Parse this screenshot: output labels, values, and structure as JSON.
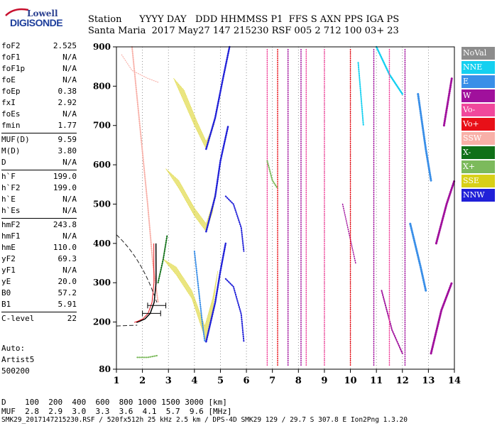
{
  "logo": {
    "top": "Lowell",
    "bottom": "DIGISONDE"
  },
  "header": {
    "line1": "Station      YYYY DAY   DDD HHMMSS P1  FFS S AXN PPS IGA PS",
    "line2": "Santa Maria  2017 May27 147 215230 RSF 005 2 712 100 03+ 23"
  },
  "params": [
    {
      "name": "foF2",
      "value": "2.525"
    },
    {
      "name": "foF1",
      "value": "N/A"
    },
    {
      "name": "foF1p",
      "value": "N/A"
    },
    {
      "name": "foE",
      "value": "N/A"
    },
    {
      "name": "foEp",
      "value": "0.38"
    },
    {
      "name": "fxI",
      "value": "2.92"
    },
    {
      "name": "foEs",
      "value": "N/A"
    },
    {
      "name": "fmin",
      "value": "1.77"
    },
    {
      "name": "MUF(D)",
      "value": "9.59"
    },
    {
      "name": "M(D)",
      "value": "3.80"
    },
    {
      "name": "D",
      "value": "N/A"
    },
    {
      "name": "h`F",
      "value": "199.0"
    },
    {
      "name": "h`F2",
      "value": "199.0"
    },
    {
      "name": "h`E",
      "value": "N/A"
    },
    {
      "name": "h`Es",
      "value": "N/A"
    },
    {
      "name": "hmF2",
      "value": "243.8"
    },
    {
      "name": "hmF1",
      "value": "N/A"
    },
    {
      "name": "hmE",
      "value": "110.0"
    },
    {
      "name": "yF2",
      "value": "69.3"
    },
    {
      "name": "yF1",
      "value": "N/A"
    },
    {
      "name": "yE",
      "value": "20.0"
    },
    {
      "name": "B0",
      "value": "57.2"
    },
    {
      "name": "B1",
      "value": "5.91"
    },
    {
      "name": "C-level",
      "value": "22"
    }
  ],
  "auto": {
    "line1": "Auto:",
    "line2": "Artist5",
    "line3": "500200"
  },
  "legend": [
    {
      "label": "NoVal",
      "color": "#8c8c8c"
    },
    {
      "label": "NNE",
      "color": "#15d0f0"
    },
    {
      "label": "E",
      "color": "#3a8fe8"
    },
    {
      "label": "W",
      "color": "#a0109c"
    },
    {
      "label": "Vo-",
      "color": "#f0489c"
    },
    {
      "label": "Vo+",
      "color": "#e81018"
    },
    {
      "label": "SSW",
      "color": "#f8b0a8"
    },
    {
      "label": "X-",
      "color": "#107018"
    },
    {
      "label": "X+",
      "color": "#7cba5c"
    },
    {
      "label": "SSE",
      "color": "#d8d018"
    },
    {
      "label": "NNW",
      "color": "#2020d8"
    }
  ],
  "footer": {
    "d_row": "D    100  200  400  600  800 1000 1500 3000 [km]",
    "muf_row": "MUF  2.8  2.9  3.0  3.3  3.6  4.1  5.7  9.6 [MHz]",
    "info": "SMK29_2017147215230.RSF / 520fx512h 25 kHz 2.5 km / DPS-4D SMK29 129 / 29.7 S 307.8 E Ion2Png 1.3.20"
  },
  "chart_data": {
    "type": "scatter",
    "xlim": [
      1,
      14
    ],
    "ylim": [
      80,
      900
    ],
    "x_ticks": [
      1,
      2,
      3,
      4,
      5,
      6,
      7,
      8,
      9,
      10,
      11,
      12,
      13,
      14
    ],
    "y_ticks": [
      80,
      200,
      300,
      400,
      500,
      600,
      700,
      800,
      900
    ],
    "grid": "vertical dotted at each MHz",
    "profile_trace": {
      "x": [
        1.77,
        1.9,
        2.1,
        2.3,
        2.45,
        2.525,
        2.52
      ],
      "y": [
        199,
        202,
        208,
        222,
        250,
        300,
        400
      ]
    }
  }
}
